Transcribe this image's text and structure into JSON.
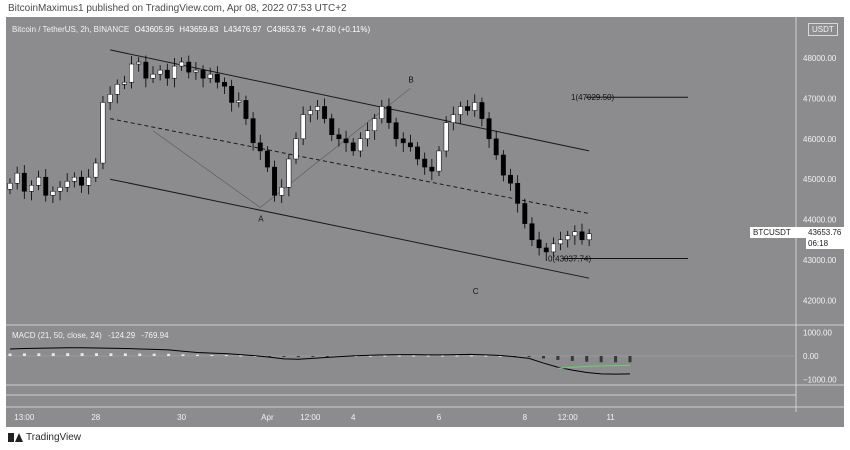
{
  "publisher_line": "BitcoinMaximus1 published on TradingView.com, Apr 08, 2022 07:53 UTC+2",
  "brand": "TradingView",
  "header": {
    "symbol": "Bitcoin / TetherUS, 2h, BINANCE",
    "open": "O43605.95",
    "high": "H43659.83",
    "low": "L43476.97",
    "close": "C43653.76",
    "change": "+47.80 (+0.11%)"
  },
  "currency_badge": "USDT",
  "price_tag": {
    "symbol": "BTCUSDT",
    "price": "43653.76",
    "countdown": "06:18"
  },
  "macd_legend": {
    "label": "MACD (21, 50, close, 24)",
    "v1": "-124.29",
    "v2": "-769.94"
  },
  "colors": {
    "background": "#8c8c8f",
    "up_candle": "#ffffff",
    "down_candle": "#000000",
    "trend_line": "#1a1a1a",
    "macd_line": "#000000",
    "signal_line": "#6fcf6f"
  },
  "chart_data": {
    "type": "candlestick",
    "y_axis": {
      "ticks": [
        {
          "value": 48000,
          "label": "48000.00"
        },
        {
          "value": 47000,
          "label": "47000.00"
        },
        {
          "value": 46000,
          "label": "46000.00"
        },
        {
          "value": 45000,
          "label": "45000.00"
        },
        {
          "value": 44000,
          "label": "44000.00"
        },
        {
          "value": 43000,
          "label": "43000.00"
        },
        {
          "value": 42000,
          "label": "42000.00"
        }
      ]
    },
    "x_axis": {
      "ticks": [
        {
          "t": 2,
          "label": "13:00"
        },
        {
          "t": 12,
          "label": "28"
        },
        {
          "t": 24,
          "label": "30"
        },
        {
          "t": 36,
          "label": "Apr"
        },
        {
          "t": 42,
          "label": "12:00"
        },
        {
          "t": 48,
          "label": "4"
        },
        {
          "t": 60,
          "label": "6"
        },
        {
          "t": 72,
          "label": "8"
        },
        {
          "t": 78,
          "label": "12:00"
        },
        {
          "t": 84,
          "label": "11"
        }
      ]
    },
    "macd_axis": {
      "ticks": [
        {
          "value": 1000,
          "label": "1000.00"
        },
        {
          "value": 0,
          "label": "0.00"
        },
        {
          "value": -1000,
          "label": "−1000.00"
        }
      ]
    },
    "candles_close": [
      44900,
      45150,
      44700,
      44850,
      45050,
      44600,
      44700,
      44800,
      44950,
      45050,
      44850,
      45050,
      45400,
      46900,
      47100,
      47350,
      47400,
      47850,
      47900,
      47500,
      47600,
      47700,
      47500,
      47800,
      47900,
      47650,
      47700,
      47500,
      47600,
      47400,
      47300,
      46900,
      46950,
      46500,
      45900,
      45700,
      45300,
      44600,
      44800,
      45500,
      46000,
      46600,
      46700,
      46800,
      46500,
      46100,
      46000,
      45900,
      45700,
      46000,
      46200,
      46500,
      46800,
      46400,
      46000,
      45900,
      45800,
      45500,
      45300,
      45200,
      45700,
      46400,
      46600,
      46800,
      46700,
      46900,
      46500,
      46000,
      45600,
      45100,
      44900,
      44400,
      43900,
      43500,
      43300,
      43200,
      43400,
      43500,
      43600,
      43700,
      43500,
      43650
    ],
    "channel": {
      "upper": {
        "t0": 14,
        "p0": 48200,
        "t1": 81,
        "p1": 45700
      },
      "middle": {
        "t0": 14,
        "p0": 46500,
        "t1": 81,
        "p1": 44150
      },
      "lower": {
        "t0": 14,
        "p0": 45000,
        "t1": 81,
        "p1": 42550
      }
    },
    "wave_points": [
      {
        "label": "A",
        "t": 35,
        "p": 44300
      },
      {
        "label": "B",
        "t": 56,
        "p": 47250
      },
      {
        "label": "C",
        "t": 65,
        "p": 42700
      }
    ],
    "fib_levels": [
      {
        "label": "1(47029.50)",
        "value": 47029.5
      },
      {
        "label": "0(43037.74)",
        "value": 43037.74
      }
    ],
    "macd_line": [
      300,
      320,
      330,
      340,
      350,
      350,
      340,
      330,
      320,
      300,
      280,
      260,
      200,
      150,
      120,
      100,
      60,
      10,
      -50,
      -120,
      -140,
      -100,
      -60,
      -20,
      10,
      30,
      50,
      60,
      60,
      50,
      50,
      60,
      70,
      50,
      20,
      -30,
      -100,
      -300,
      -480,
      -600,
      -700,
      -760,
      -770,
      -760
    ],
    "signal_line": [
      -520,
      -480,
      -440,
      -420,
      -410,
      -400
    ]
  }
}
